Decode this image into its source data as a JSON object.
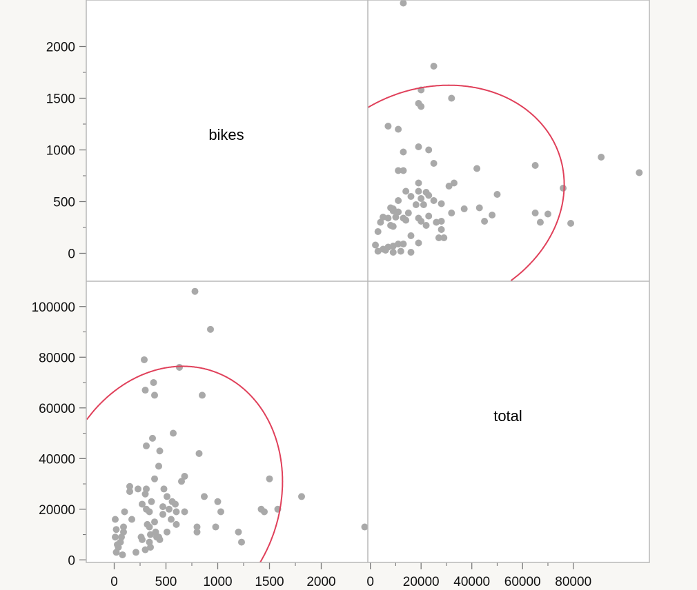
{
  "chart_data": {
    "type": "scatter",
    "variables": [
      "bikes",
      "total"
    ],
    "ellipse_color": "#e0405a",
    "point_color": "#a9a9a9",
    "axes": {
      "bikes": {
        "range": [
          -270,
          2450
        ],
        "ticks": [
          0,
          500,
          1000,
          1500,
          2000
        ]
      },
      "total": {
        "range": [
          -1000,
          110000
        ],
        "ticks": [
          0,
          20000,
          40000,
          60000,
          80000,
          100000
        ]
      },
      "total_bottom": {
        "range": [
          -1000,
          110000
        ],
        "ticks": [
          0,
          20000,
          40000,
          60000,
          80000
        ]
      }
    },
    "points": [
      [
        13000,
        2420
      ],
      [
        25000,
        1810
      ],
      [
        20000,
        1580
      ],
      [
        32000,
        1500
      ],
      [
        19000,
        1450
      ],
      [
        20000,
        1420
      ],
      [
        7000,
        1230
      ],
      [
        11000,
        1200
      ],
      [
        19000,
        1030
      ],
      [
        23000,
        1000
      ],
      [
        13000,
        980
      ],
      [
        25000,
        870
      ],
      [
        11000,
        800
      ],
      [
        13000,
        800
      ],
      [
        42000,
        820
      ],
      [
        65000,
        850
      ],
      [
        91000,
        930
      ],
      [
        106000,
        780
      ],
      [
        76000,
        630
      ],
      [
        19000,
        680
      ],
      [
        33000,
        680
      ],
      [
        31000,
        650
      ],
      [
        14000,
        600
      ],
      [
        19000,
        600
      ],
      [
        22000,
        590
      ],
      [
        16000,
        550
      ],
      [
        23000,
        560
      ],
      [
        11000,
        510
      ],
      [
        20000,
        530
      ],
      [
        25000,
        510
      ],
      [
        50000,
        570
      ],
      [
        18000,
        470
      ],
      [
        21000,
        470
      ],
      [
        28000,
        480
      ],
      [
        8000,
        440
      ],
      [
        9000,
        430
      ],
      [
        43000,
        440
      ],
      [
        37000,
        430
      ],
      [
        9000,
        410
      ],
      [
        11000,
        400
      ],
      [
        15000,
        390
      ],
      [
        23000,
        360
      ],
      [
        32000,
        390
      ],
      [
        48000,
        370
      ],
      [
        65000,
        390
      ],
      [
        70000,
        380
      ],
      [
        4000,
        300
      ],
      [
        5000,
        350
      ],
      [
        7000,
        340
      ],
      [
        10000,
        350
      ],
      [
        13000,
        340
      ],
      [
        14000,
        320
      ],
      [
        19000,
        340
      ],
      [
        20000,
        310
      ],
      [
        26000,
        300
      ],
      [
        28000,
        310
      ],
      [
        45000,
        310
      ],
      [
        67000,
        300
      ],
      [
        79000,
        290
      ],
      [
        8000,
        270
      ],
      [
        9000,
        260
      ],
      [
        22000,
        270
      ],
      [
        3000,
        210
      ],
      [
        28000,
        230
      ],
      [
        16000,
        170
      ],
      [
        27000,
        150
      ],
      [
        29000,
        150
      ],
      [
        2000,
        80
      ],
      [
        7000,
        60
      ],
      [
        9000,
        70
      ],
      [
        11000,
        90
      ],
      [
        13000,
        90
      ],
      [
        19000,
        100
      ],
      [
        3000,
        20
      ],
      [
        5000,
        40
      ],
      [
        6000,
        30
      ],
      [
        9000,
        10
      ],
      [
        12000,
        20
      ],
      [
        16000,
        10
      ]
    ]
  }
}
